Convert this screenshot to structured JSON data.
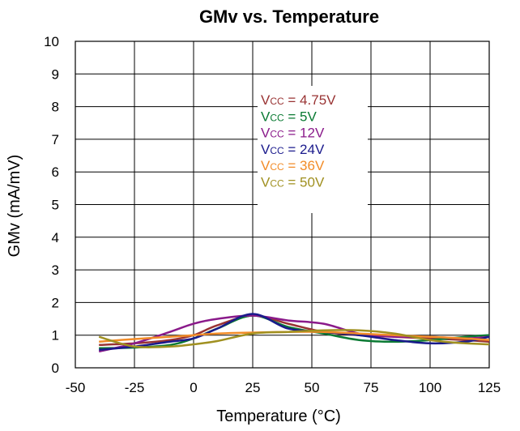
{
  "chart_data": {
    "type": "line",
    "title": "GMv vs. Temperature",
    "xlabel": "Temperature (°C)",
    "ylabel": "GMv (mA/mV)",
    "xlim": [
      -50,
      125
    ],
    "ylim": [
      0,
      10
    ],
    "xticks": [
      -50,
      -25,
      0,
      25,
      50,
      75,
      100,
      125
    ],
    "yticks": [
      0,
      1,
      2,
      3,
      4,
      5,
      6,
      7,
      8,
      9,
      10
    ],
    "grid": true,
    "legend_placement": "center",
    "x": [
      -40,
      -25,
      -10,
      0,
      10,
      25,
      40,
      55,
      70,
      85,
      100,
      115,
      125
    ],
    "series": [
      {
        "name_prefix": "V",
        "name_sub": "CC",
        "name_value": " = 4.75V",
        "color": "#993333",
        "values": [
          0.7,
          0.75,
          0.85,
          1.0,
          1.3,
          1.6,
          1.35,
          1.1,
          1.0,
          0.95,
          0.9,
          0.85,
          0.8
        ]
      },
      {
        "name_prefix": "V",
        "name_sub": "CC",
        "name_value": " = 5V",
        "color": "#0a7a33",
        "values": [
          0.6,
          0.62,
          0.7,
          0.9,
          1.2,
          1.6,
          1.25,
          1.05,
          0.85,
          0.8,
          0.85,
          0.95,
          1.0
        ]
      },
      {
        "name_prefix": "V",
        "name_sub": "CC",
        "name_value": " = 12V",
        "color": "#8a1a8a",
        "values": [
          0.5,
          0.75,
          1.1,
          1.35,
          1.5,
          1.6,
          1.45,
          1.35,
          1.05,
          0.95,
          0.95,
          0.9,
          0.95
        ]
      },
      {
        "name_prefix": "V",
        "name_sub": "CC",
        "name_value": " = 24V",
        "color": "#1a1a8c",
        "values": [
          0.55,
          0.65,
          0.8,
          0.9,
          1.2,
          1.65,
          1.2,
          1.1,
          1.0,
          0.85,
          0.75,
          0.8,
          0.95
        ]
      },
      {
        "name_prefix": "V",
        "name_sub": "CC",
        "name_value": " = 36V",
        "color": "#f28c28",
        "values": [
          0.8,
          0.88,
          0.95,
          1.0,
          1.05,
          1.08,
          1.1,
          1.1,
          1.05,
          1.0,
          0.95,
          0.9,
          0.85
        ]
      },
      {
        "name_prefix": "V",
        "name_sub": "CC",
        "name_value": " = 50V",
        "color": "#a09020",
        "values": [
          0.95,
          0.65,
          0.65,
          0.72,
          0.82,
          1.05,
          1.1,
          1.15,
          1.15,
          1.05,
          0.85,
          0.75,
          0.72
        ]
      }
    ]
  }
}
